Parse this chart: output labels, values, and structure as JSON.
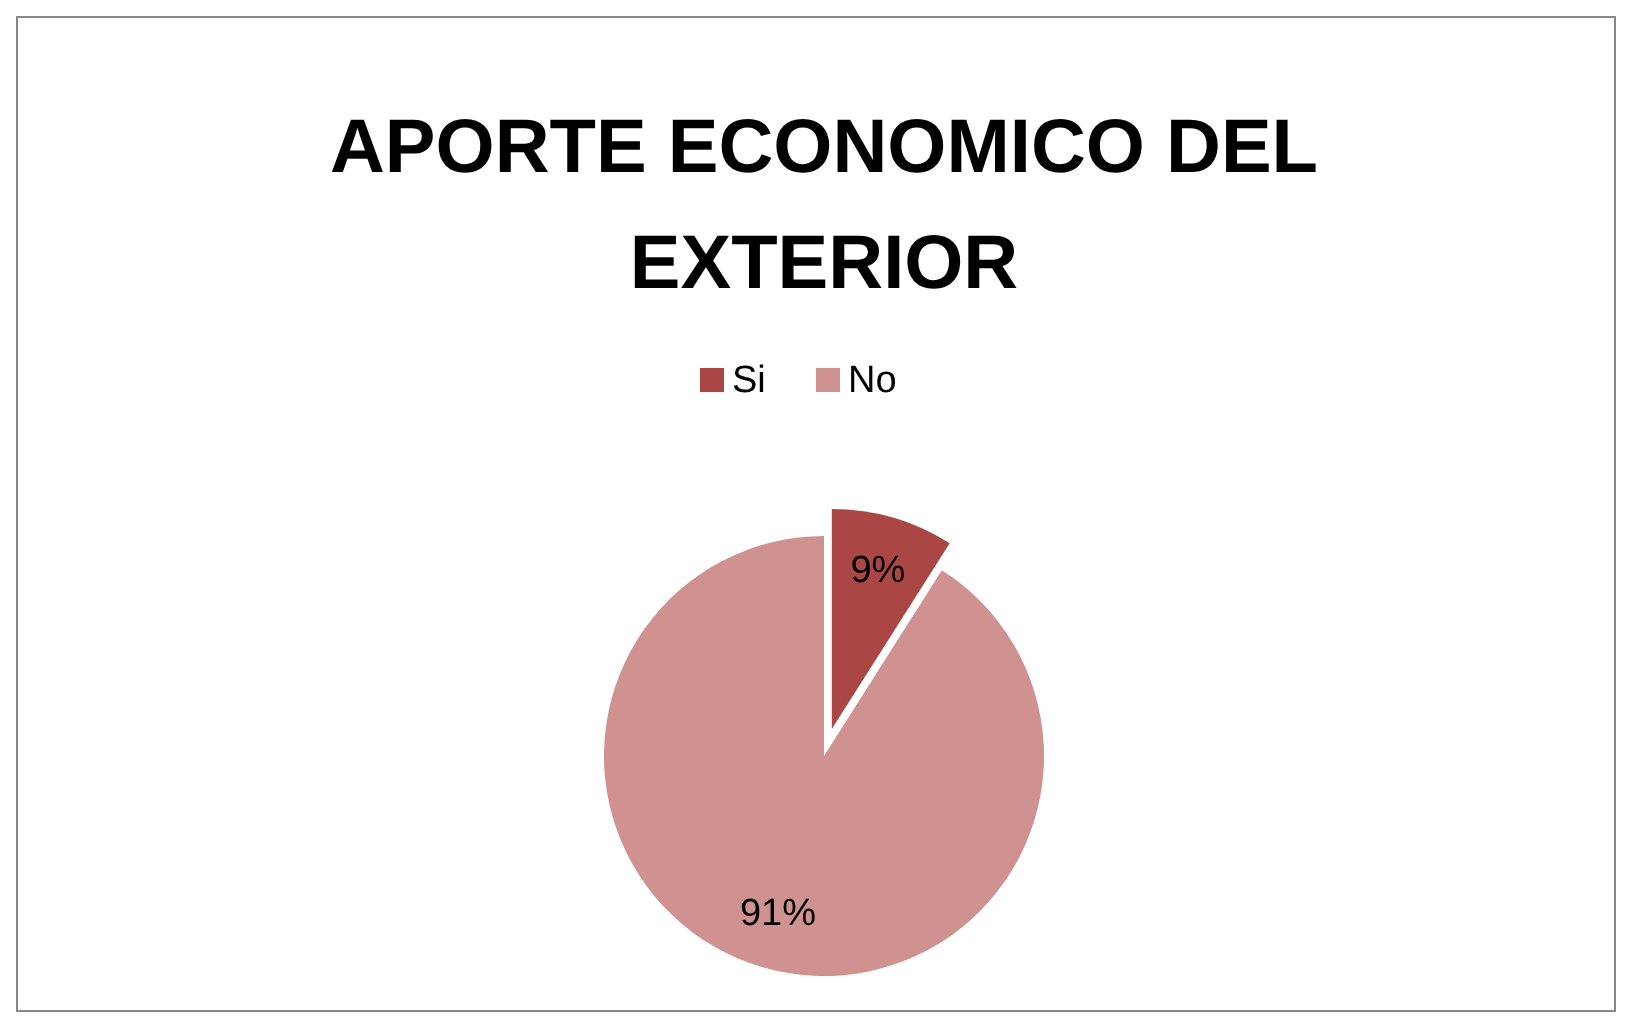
{
  "chart_data": {
    "type": "pie",
    "title": "APORTE ECONOMICO DEL EXTERIOR",
    "categories": [
      "Si",
      "No"
    ],
    "values": [
      9,
      91
    ],
    "value_labels": [
      "9%",
      "91%"
    ],
    "colors": [
      "#aa4643",
      "#d09290"
    ],
    "legend": "top"
  }
}
